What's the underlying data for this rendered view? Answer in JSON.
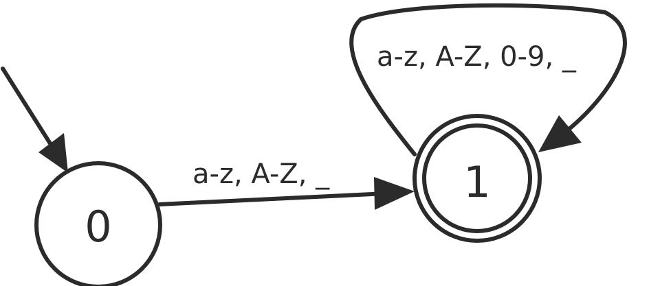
{
  "diagram": {
    "states": [
      {
        "id": "0",
        "label": "0",
        "initial": true,
        "accepting": false
      },
      {
        "id": "1",
        "label": "1",
        "initial": false,
        "accepting": true
      }
    ],
    "transitions": [
      {
        "from": "0",
        "to": "1",
        "label": "a-z, A-Z, _"
      },
      {
        "from": "1",
        "to": "1",
        "label": "a-z, A-Z, 0-9, _"
      }
    ]
  },
  "colors": {
    "stroke": "#2b2b2b",
    "background": "#ffffff"
  }
}
